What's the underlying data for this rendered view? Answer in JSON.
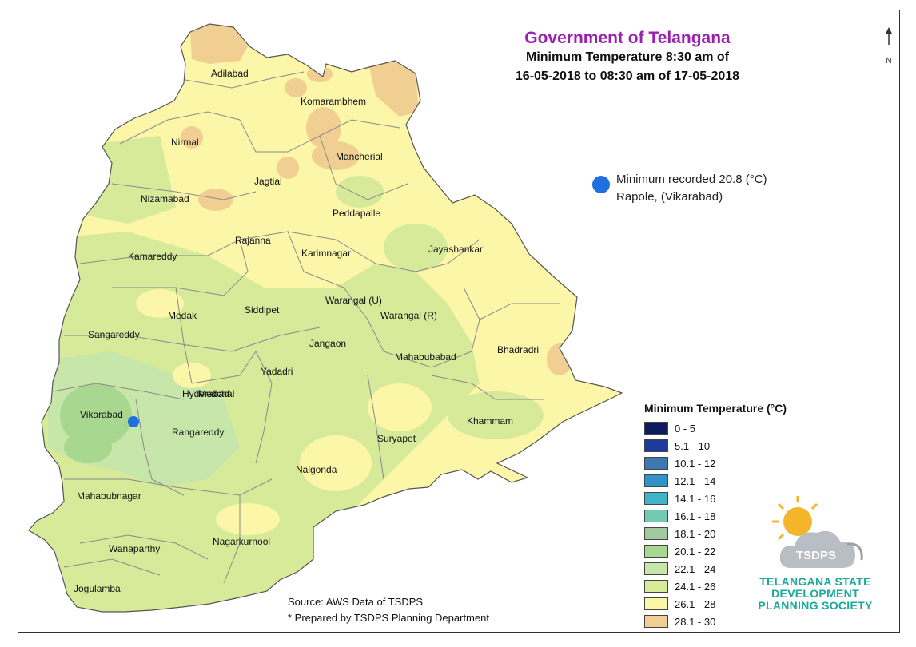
{
  "header": {
    "org": "Government of Telangana",
    "line1": "Minimum Temperature 8:30 am of",
    "line2": "16-05-2018 to 08:30 am of 17-05-2018"
  },
  "minimum": {
    "line1": "Minimum recorded 20.8 (°C)",
    "line2": "Rapole, (Vikarabad)",
    "value_c": 20.8,
    "marker_color": "#1f6fe0"
  },
  "districts": [
    {
      "name": "Adilabad"
    },
    {
      "name": "Komarambhem"
    },
    {
      "name": "Nirmal"
    },
    {
      "name": "Mancherial"
    },
    {
      "name": "Jagtial"
    },
    {
      "name": "Nizamabad"
    },
    {
      "name": "Peddapalle"
    },
    {
      "name": "Rajanna"
    },
    {
      "name": "Jayashankar"
    },
    {
      "name": "Kamareddy"
    },
    {
      "name": "Karimnagar"
    },
    {
      "name": "Siddipet"
    },
    {
      "name": "Warangal (U)"
    },
    {
      "name": "Medak"
    },
    {
      "name": "Warangal (R)"
    },
    {
      "name": "Sangareddy"
    },
    {
      "name": "Jangaon"
    },
    {
      "name": "Bhadradri"
    },
    {
      "name": "Mahabubabad"
    },
    {
      "name": "Medchal"
    },
    {
      "name": "Yadadri"
    },
    {
      "name": "Hyderabad"
    },
    {
      "name": "Vikarabad"
    },
    {
      "name": "Khammam"
    },
    {
      "name": "Rangareddy"
    },
    {
      "name": "Suryapet"
    },
    {
      "name": "Nalgonda"
    },
    {
      "name": "Mahabubnagar"
    },
    {
      "name": "Nagarkurnool"
    },
    {
      "name": "Wanaparthy"
    },
    {
      "name": "Jogulamba"
    }
  ],
  "legend": {
    "title": "Minimum Temperature (°C)",
    "items": [
      {
        "label": "0 - 5",
        "color": "#0d1b5e"
      },
      {
        "label": "5.1 - 10",
        "color": "#1f3a9a"
      },
      {
        "label": "10.1 - 12",
        "color": "#3f77b0"
      },
      {
        "label": "12.1 - 14",
        "color": "#2f93c8"
      },
      {
        "label": "14.1 - 16",
        "color": "#3fb3c8"
      },
      {
        "label": "16.1 - 18",
        "color": "#72c9b4"
      },
      {
        "label": "18.1 - 20",
        "color": "#a3c9a0"
      },
      {
        "label": "20.1 - 22",
        "color": "#a8d890"
      },
      {
        "label": "22.1 - 24",
        "color": "#c7e6a9"
      },
      {
        "label": "24.1 - 26",
        "color": "#d6ea9a"
      },
      {
        "label": "26.1 - 28",
        "color": "#fbf6a8"
      },
      {
        "label": "28.1 - 30",
        "color": "#f1cf92"
      }
    ]
  },
  "source": {
    "line1": "Source: AWS Data of TSDPS",
    "line2": "* Prepared by TSDPS Planning Department"
  },
  "logo": {
    "acronym": "TSDPS",
    "line1": "TELANGANA STATE",
    "line2": "DEVELOPMENT",
    "line3": "PLANNING SOCIETY"
  },
  "north_label": "N"
}
